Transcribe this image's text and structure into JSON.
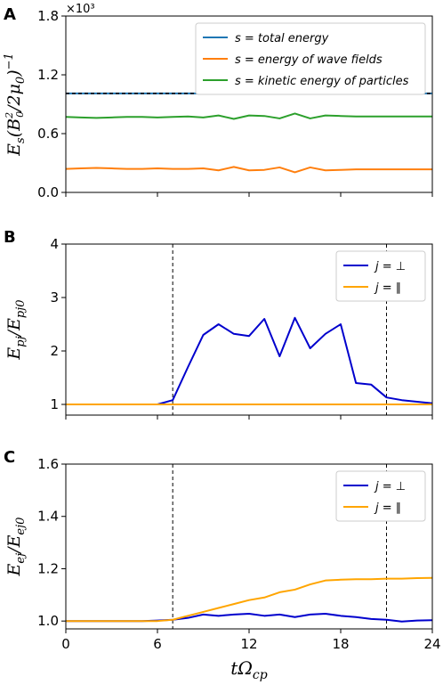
{
  "chart_data": [
    {
      "panel": "A",
      "type": "line",
      "ylabel": "E_s(B_0^2/2μ_0)^-1",
      "multiplier": "×10³",
      "ylim": [
        0.0,
        1.8
      ],
      "yticks": [
        "0.0",
        "0.6",
        "1.2",
        "1.8"
      ],
      "ytick_values": [
        0,
        0.6,
        1.2,
        1.8
      ],
      "xlim": [
        0,
        24
      ],
      "legend_position": "top-right",
      "x": [
        0,
        1,
        2,
        3,
        4,
        5,
        6,
        7,
        8,
        9,
        10,
        11,
        12,
        13,
        14,
        15,
        16,
        17,
        18,
        19,
        20,
        21,
        22,
        23,
        24
      ],
      "series": [
        {
          "name": "s = total energy",
          "color": "#1f77b4",
          "dashed_overlay": true,
          "values": [
            1.01,
            1.01,
            1.01,
            1.01,
            1.01,
            1.01,
            1.01,
            1.01,
            1.01,
            1.01,
            1.01,
            1.01,
            1.01,
            1.01,
            1.01,
            1.01,
            1.01,
            1.01,
            1.01,
            1.01,
            1.01,
            1.01,
            1.01,
            1.01,
            1.01
          ]
        },
        {
          "name": "s = energy of wave fields",
          "color": "#ff7f0e",
          "values": [
            0.24,
            0.245,
            0.25,
            0.245,
            0.24,
            0.24,
            0.245,
            0.24,
            0.24,
            0.245,
            0.225,
            0.26,
            0.225,
            0.23,
            0.255,
            0.205,
            0.255,
            0.225,
            0.23,
            0.235,
            0.235,
            0.235,
            0.235,
            0.235,
            0.235
          ]
        },
        {
          "name": "s = kinetic energy of particles",
          "color": "#2ca02c",
          "values": [
            0.77,
            0.765,
            0.76,
            0.765,
            0.77,
            0.77,
            0.765,
            0.77,
            0.775,
            0.765,
            0.785,
            0.75,
            0.785,
            0.78,
            0.755,
            0.805,
            0.755,
            0.785,
            0.78,
            0.775,
            0.775,
            0.775,
            0.775,
            0.775,
            0.775
          ]
        }
      ]
    },
    {
      "panel": "B",
      "type": "line",
      "ylabel": "E_pj/E_pj0",
      "ylim": [
        0.8,
        4.0
      ],
      "yticks": [
        "1",
        "2",
        "3",
        "4"
      ],
      "ytick_values": [
        1,
        2,
        3,
        4
      ],
      "xlim": [
        0,
        24
      ],
      "vlines": [
        7,
        21
      ],
      "legend_position": "top-right",
      "x": [
        0,
        1,
        2,
        3,
        4,
        5,
        6,
        7,
        8,
        9,
        10,
        11,
        12,
        13,
        14,
        15,
        16,
        17,
        18,
        19,
        20,
        21,
        22,
        23,
        24
      ],
      "series": [
        {
          "name": "j = ⊥",
          "color": "#0000cd",
          "values": [
            1.0,
            1.0,
            1.0,
            1.0,
            1.0,
            1.0,
            1.0,
            1.08,
            1.7,
            2.3,
            2.5,
            2.32,
            2.28,
            2.6,
            1.9,
            2.62,
            2.05,
            2.32,
            2.5,
            1.4,
            1.37,
            1.13,
            1.08,
            1.05,
            1.02
          ]
        },
        {
          "name": "j = ∥",
          "color": "#ffa500",
          "values": [
            1.0,
            1.0,
            1.0,
            1.0,
            1.0,
            1.0,
            1.0,
            1.0,
            1.0,
            1.0,
            1.0,
            1.0,
            1.0,
            1.0,
            1.0,
            1.0,
            1.0,
            1.0,
            1.0,
            1.0,
            1.0,
            1.0,
            1.0,
            1.0,
            1.0
          ]
        }
      ]
    },
    {
      "panel": "C",
      "type": "line",
      "ylabel": "E_ej/E_ej0",
      "xlabel": "tΩ_cp",
      "ylim": [
        0.97,
        1.6
      ],
      "yticks": [
        "1.0",
        "1.2",
        "1.4",
        "1.6"
      ],
      "ytick_values": [
        1.0,
        1.2,
        1.4,
        1.6
      ],
      "xlim": [
        0,
        24
      ],
      "xticks": [
        "0",
        "6",
        "12",
        "18",
        "24"
      ],
      "xtick_values": [
        0,
        6,
        12,
        18,
        24
      ],
      "vlines": [
        7,
        21
      ],
      "legend_position": "top-right",
      "x": [
        0,
        1,
        2,
        3,
        4,
        5,
        6,
        7,
        8,
        9,
        10,
        11,
        12,
        13,
        14,
        15,
        16,
        17,
        18,
        19,
        20,
        21,
        22,
        23,
        24
      ],
      "series": [
        {
          "name": "j = ⊥",
          "color": "#0000cd",
          "values": [
            1.0,
            1.0,
            1.0,
            1.0,
            1.0,
            1.0,
            1.002,
            1.005,
            1.012,
            1.025,
            1.02,
            1.025,
            1.028,
            1.02,
            1.025,
            1.015,
            1.025,
            1.028,
            1.02,
            1.015,
            1.008,
            1.005,
            0.998,
            1.002,
            1.003
          ]
        },
        {
          "name": "j = ∥",
          "color": "#ffa500",
          "values": [
            1.0,
            1.0,
            1.0,
            1.0,
            1.0,
            1.0,
            1.0,
            1.005,
            1.02,
            1.035,
            1.05,
            1.065,
            1.08,
            1.09,
            1.11,
            1.12,
            1.14,
            1.155,
            1.158,
            1.16,
            1.16,
            1.162,
            1.162,
            1.164,
            1.165
          ]
        }
      ]
    }
  ]
}
